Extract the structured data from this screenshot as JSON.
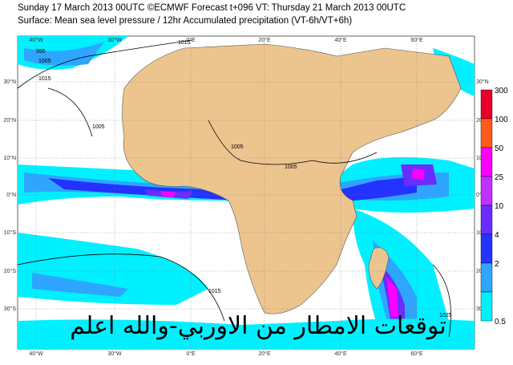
{
  "header": {
    "line1": "Sunday 17 March 2013 00UTC ©ECMWF Forecast t+096 VT: Thursday 21 March 2013 00UTC",
    "line2": "Surface: Mean sea level pressure / 12hr Accumulated precipitation (VT-6h/VT+6h)"
  },
  "map": {
    "lon_labels": [
      "40°W",
      "30°W",
      "0°E",
      "20°E",
      "40°E",
      "60°E"
    ],
    "lat_labels": [
      "30°N",
      "20°N",
      "10°N",
      "0°N",
      "10°S",
      "20°S",
      "30°S"
    ],
    "isobar_labels": [
      "995",
      "1005",
      "1015",
      "1005",
      "1005",
      "1005",
      "1015",
      "1015",
      "1025"
    ],
    "overlay_text": "توقعات الامطار من الاوربي-والله اعلم"
  },
  "legend": [
    {
      "value": 300,
      "color": "#e8002a"
    },
    {
      "value": 100,
      "color": "#ff5a1a"
    },
    {
      "value": 50,
      "color": "#ff00ff"
    },
    {
      "value": 25,
      "color": "#c030ff"
    },
    {
      "value": 10,
      "color": "#6a2cff"
    },
    {
      "value": 4,
      "color": "#2432ff"
    },
    {
      "value": 2,
      "color": "#2ea6ff"
    },
    {
      "value": 0.5,
      "color": "#00f0ff"
    }
  ]
}
